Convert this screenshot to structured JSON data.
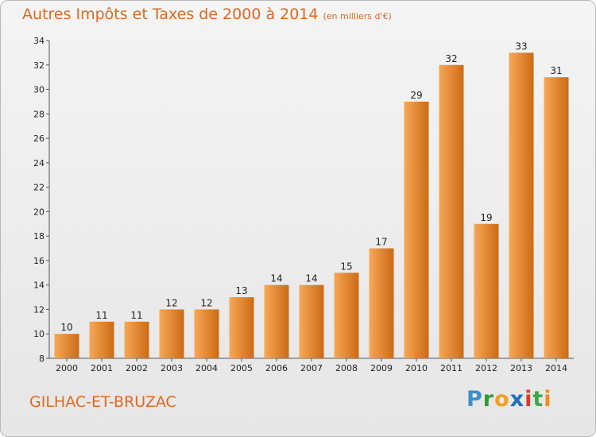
{
  "title": "Autres Impôts et Taxes de 2000 à 2014",
  "unit_note": "(en milliers d'€)",
  "commune": "GILHAC-ET-BRUZAC",
  "logo": {
    "text": "Proxiti",
    "letters": [
      {
        "char": "P",
        "color": "#3a8fd0"
      },
      {
        "char": "r",
        "color": "#2f9a3a"
      },
      {
        "char": "o",
        "color": "#f0a020"
      },
      {
        "char": "x",
        "color": "#2070c0"
      },
      {
        "char": "i",
        "color": "#e03a2a"
      },
      {
        "char": "t",
        "color": "#3aa848"
      },
      {
        "char": "i",
        "color": "#f08a20"
      }
    ]
  },
  "colors": {
    "accent": "#e06820",
    "bar_light": "#f6a857",
    "bar_dark": "#cc6a14"
  },
  "chart_data": {
    "type": "bar",
    "title": "Autres Impôts et Taxes de 2000 à 2014",
    "ylabel": "(en milliers d'€)",
    "xlabel": "",
    "ylim": [
      8,
      34
    ],
    "y_ticks": [
      8,
      10,
      12,
      14,
      16,
      18,
      20,
      22,
      24,
      26,
      28,
      30,
      32,
      34
    ],
    "grid": false,
    "categories": [
      "2000",
      "2001",
      "2002",
      "2003",
      "2004",
      "2005",
      "2006",
      "2007",
      "2008",
      "2009",
      "2010",
      "2011",
      "2012",
      "2013",
      "2014"
    ],
    "values": [
      10,
      11,
      11,
      12,
      12,
      13,
      14,
      14,
      15,
      17,
      29,
      32,
      19,
      33,
      31
    ]
  }
}
